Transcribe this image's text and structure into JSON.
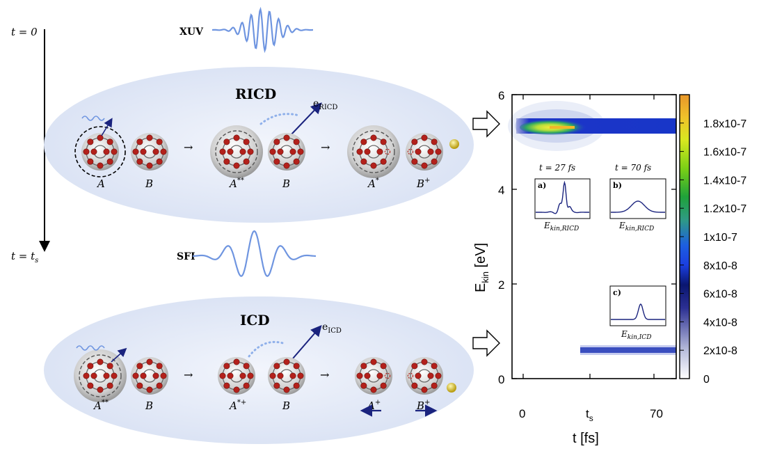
{
  "timeline": {
    "start_label": "t = 0",
    "end_label": "t = t",
    "end_sub": "s"
  },
  "pulses": {
    "xuv": "XUV",
    "sfi": "SFI"
  },
  "ricd": {
    "title": "RICD",
    "electron_label": "e",
    "electron_sub": "RICD",
    "atom_labels": [
      "A",
      "B",
      "A",
      "B",
      "A",
      "B"
    ],
    "atom_sups": [
      "",
      "",
      "**",
      "",
      "*",
      "+"
    ]
  },
  "icd": {
    "title": "ICD",
    "electron_label": "e",
    "electron_sub": "ICD",
    "atom_labels": [
      "A",
      "B",
      "A",
      "B",
      "A",
      "B"
    ],
    "atom_sups": [
      "**",
      "",
      "*+",
      "",
      "+",
      "+"
    ]
  },
  "plot": {
    "ylabel": "E",
    "ylabel_sub": "kin",
    "ylabel_unit": " [eV]",
    "xlabel": "t [fs]",
    "y_ticks": [
      "0",
      "2",
      "4",
      "6"
    ],
    "x_ticks": [
      "0",
      "t",
      "70"
    ],
    "x_tick_sub": "s",
    "colorbar_ticks": [
      "0",
      "2x10-8",
      "4x10-8",
      "6x10-8",
      "8x10-8",
      "1x10-7",
      "1.2x10-7",
      "1.4x10-7",
      "1.6x10-7",
      "1.8x10-7"
    ],
    "inset_a": {
      "title": "t = 27 fs",
      "panel": "a)",
      "xlabel": "E",
      "xlabel_sub": "kin,RICD"
    },
    "inset_b": {
      "title": "t = 70 fs",
      "panel": "b)",
      "xlabel": "E",
      "xlabel_sub": "kin,RICD"
    },
    "inset_c": {
      "panel": "c)",
      "xlabel": "E",
      "xlabel_sub": "kin,ICD"
    }
  },
  "colors": {
    "pulse": "#6f95e0",
    "ellipse": "#dde6f6",
    "electron_red": "#b3211b",
    "arrow": "#1a237e",
    "emitted_electron": "#d6c02a"
  }
}
